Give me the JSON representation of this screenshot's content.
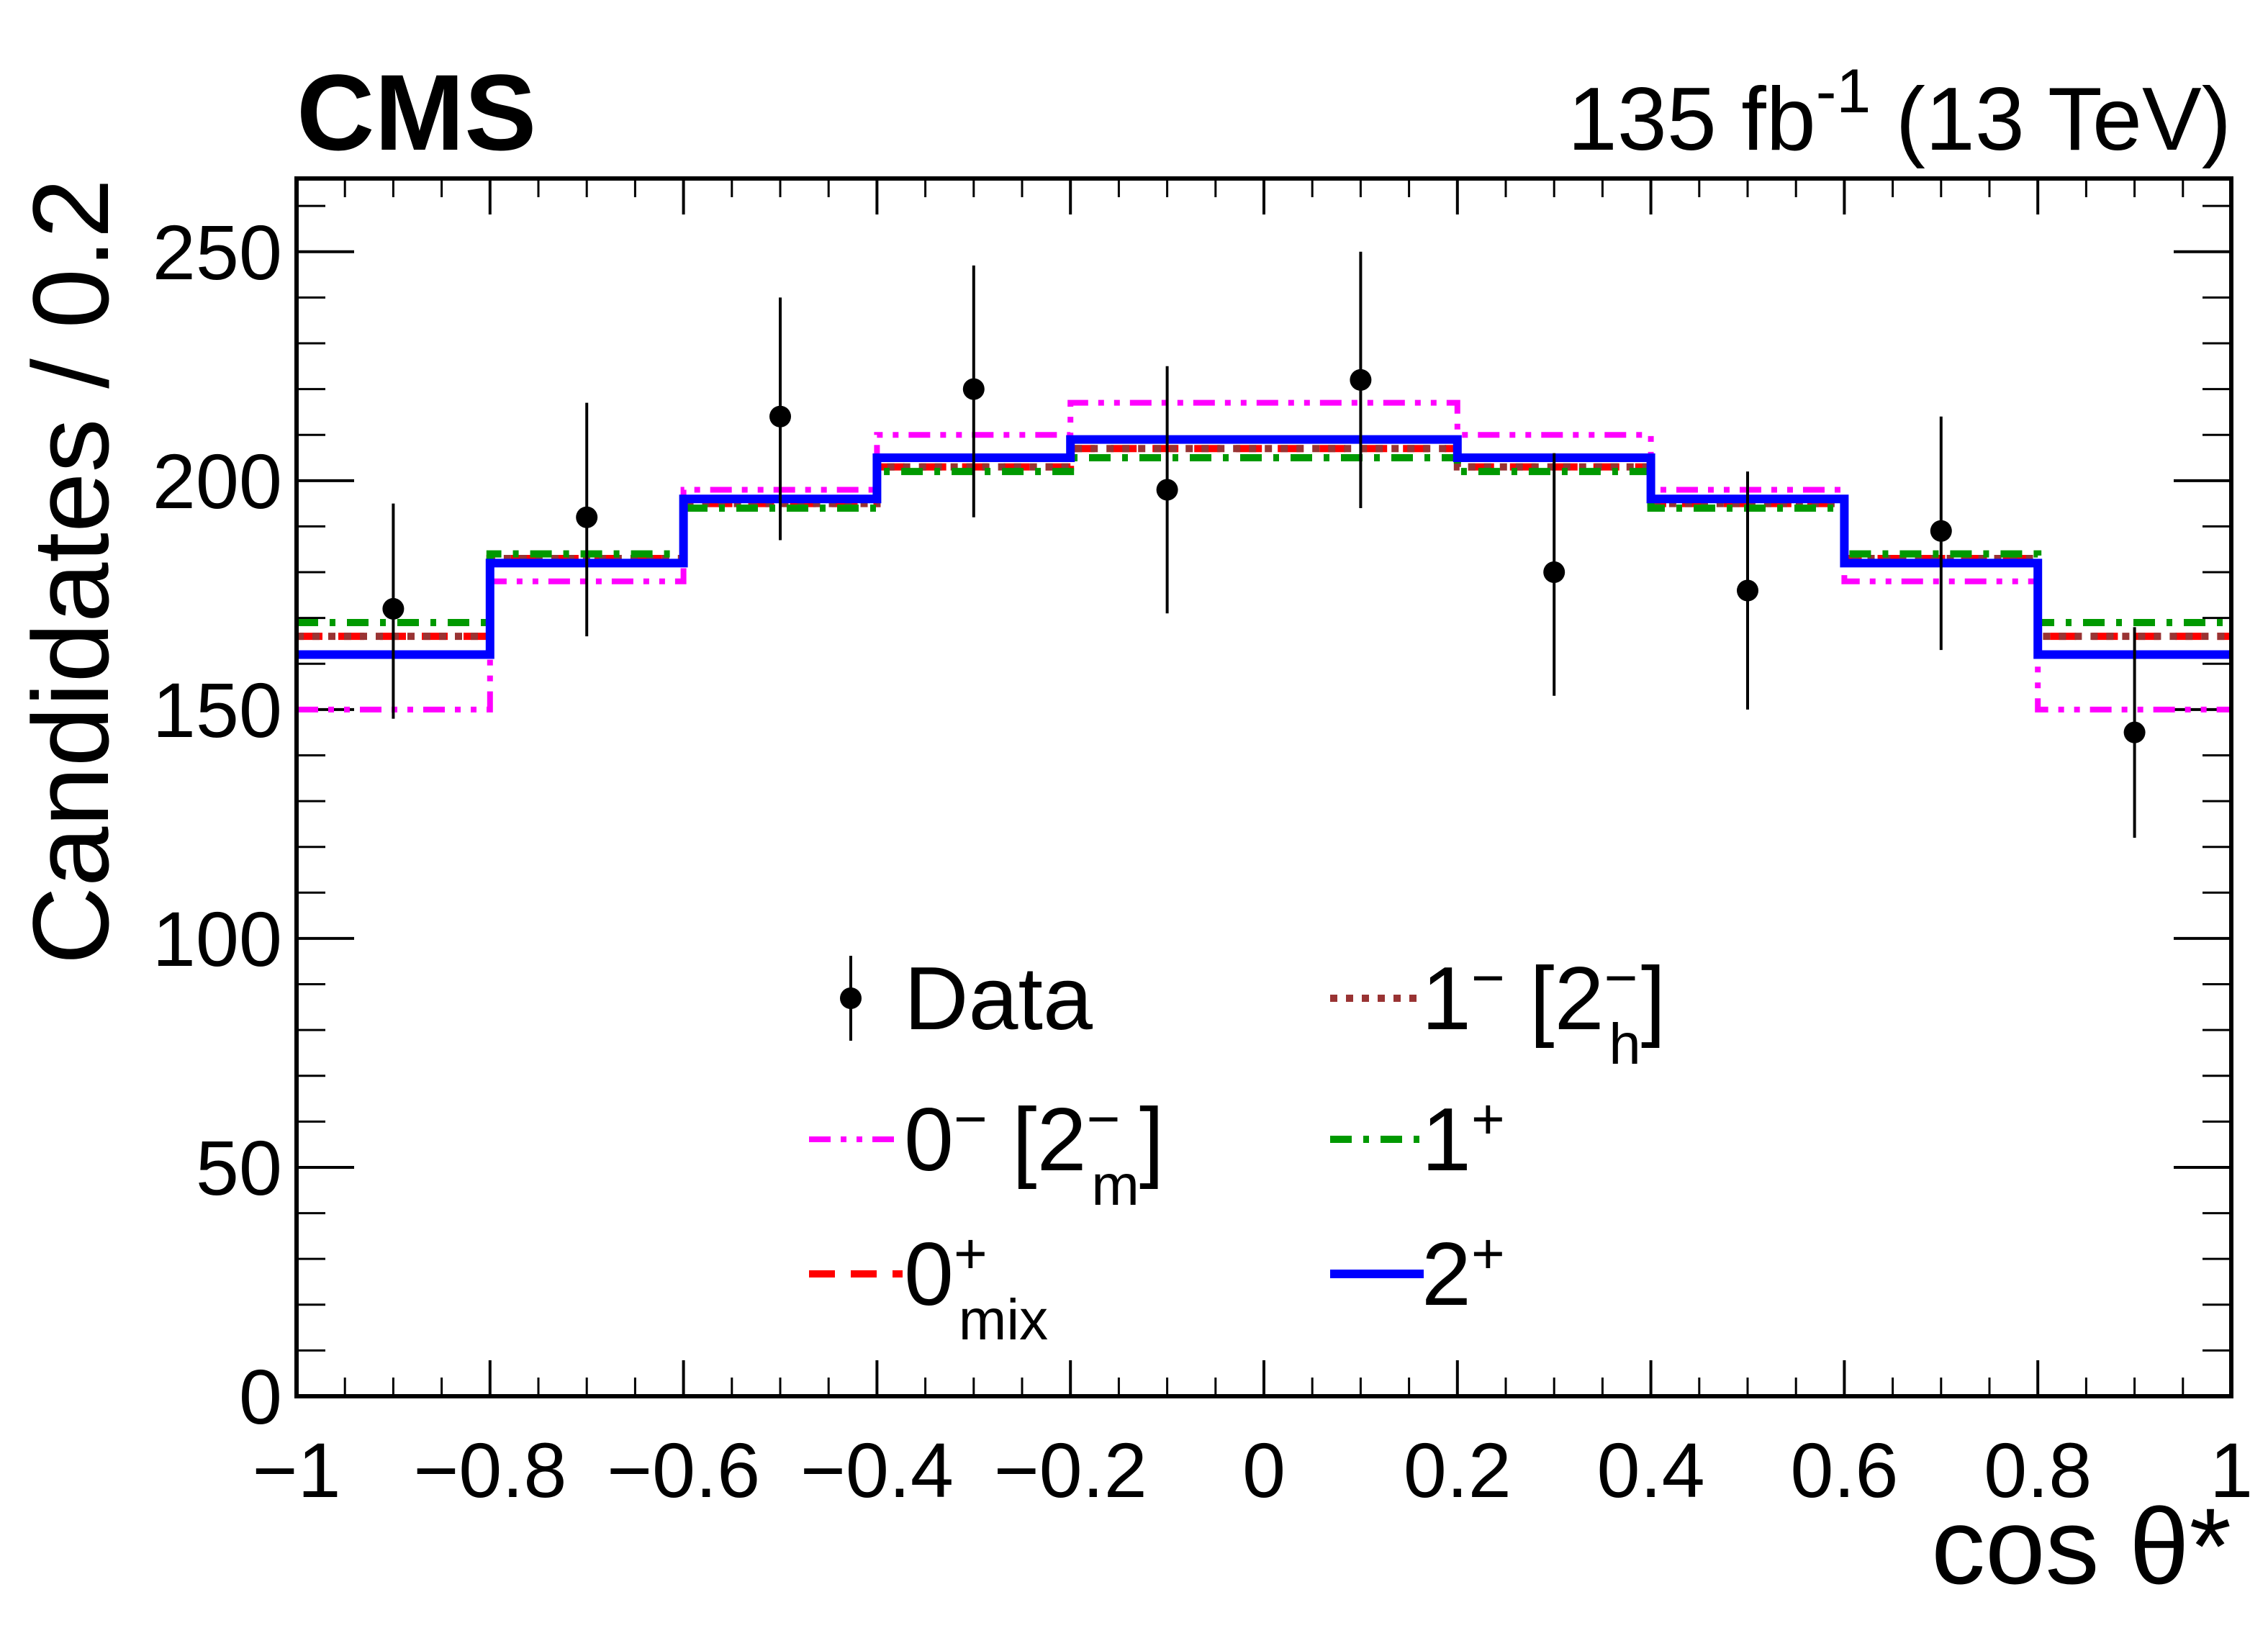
{
  "header": {
    "experiment": "CMS",
    "lumi_value": "135 fb",
    "lumi_exp": "-1",
    "energy": " (13 TeV)"
  },
  "chart_data": {
    "type": "histogram",
    "xlabel": "cos θ*",
    "ylabel": "Candidates / 0.2",
    "xlim": [
      -1,
      1
    ],
    "ylim": [
      0,
      266
    ],
    "x_ticks": [
      -1,
      -0.8,
      -0.6,
      -0.4,
      -0.2,
      0,
      0.2,
      0.4,
      0.6,
      0.8,
      1
    ],
    "x_tick_labels": [
      "−1",
      "−0.8",
      "−0.6",
      "−0.4",
      "−0.2",
      "0",
      "0.2",
      "0.4",
      "0.6",
      "0.8",
      "1"
    ],
    "y_ticks": [
      0,
      50,
      100,
      150,
      200,
      250
    ],
    "y_tick_labels": [
      "0",
      "50",
      "100",
      "150",
      "200",
      "250"
    ],
    "bin_edges": [
      -1,
      -0.8,
      -0.6,
      -0.4,
      -0.2,
      0,
      0.2,
      0.4,
      0.6,
      0.8,
      1
    ],
    "data": {
      "label": "Data",
      "x": [
        -0.9,
        -0.7,
        -0.5,
        -0.3,
        -0.1,
        0.1,
        0.3,
        0.5,
        0.7,
        0.9
      ],
      "y": [
        172,
        192,
        214,
        220,
        198,
        222,
        180,
        176,
        189,
        145
      ],
      "err_low": [
        24,
        26,
        27,
        28,
        27,
        28,
        27,
        26,
        26,
        23
      ],
      "err_high": [
        23,
        25,
        26,
        27,
        27,
        28,
        26,
        26,
        25,
        23
      ]
    },
    "series": [
      {
        "name": "0− [2−m]",
        "main": "0",
        "sup": "−",
        "bracket_main": "2",
        "bracket_sup": "−",
        "bracket_sub": "m",
        "color": "#ff00ff",
        "style": "dashdotdot",
        "values": [
          150,
          178,
          198,
          210,
          217,
          217,
          210,
          198,
          178,
          150
        ]
      },
      {
        "name": "0+mix",
        "main": "0",
        "sup": "+",
        "sub": "mix",
        "color": "#ff0000",
        "style": "dashed",
        "values": [
          166,
          183,
          195,
          203,
          207,
          207,
          203,
          195,
          183,
          166
        ]
      },
      {
        "name": "1− [2−h]",
        "main": "1",
        "sup": "−",
        "bracket_main": "2",
        "bracket_sup": "−",
        "bracket_sub": "h",
        "color": "#993333",
        "style": "dotted",
        "values": [
          166,
          183,
          195,
          203,
          207,
          207,
          203,
          195,
          183,
          166
        ]
      },
      {
        "name": "1+",
        "main": "1",
        "sup": "+",
        "color": "#009900",
        "style": "dashdot",
        "values": [
          169,
          184,
          194,
          202,
          205,
          205,
          202,
          194,
          184,
          169
        ]
      },
      {
        "name": "2+",
        "main": "2",
        "sup": "+",
        "color": "#0000ff",
        "style": "solid",
        "values": [
          162,
          182,
          196,
          205,
          209,
          209,
          205,
          196,
          182,
          162
        ]
      }
    ]
  }
}
